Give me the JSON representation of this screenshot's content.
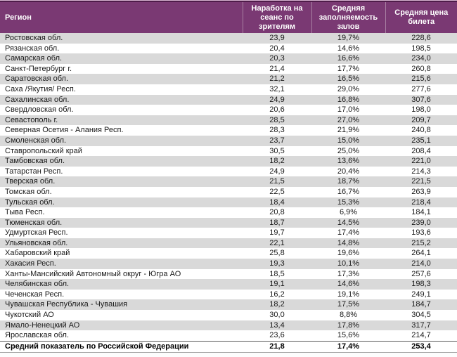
{
  "colors": {
    "header_bg": "#7a3973",
    "header_text": "#ffffff",
    "header_border_dark": "#4e1c49",
    "header_top_light": "#d8b7d2",
    "header_separator": "#a87fa2",
    "row_band_gray": "#d9d9d9",
    "row_band_white": "#ffffff",
    "body_text": "#1a1a1a",
    "total_top_border": "#595959",
    "table_bottom_border": "#a6a6a6"
  },
  "chart_data": {
    "type": "table",
    "title": "",
    "columns": [
      "Регион",
      "Наработка на сеанс по зрителям",
      "Средняя заполняемость залов",
      "Средняя цена билета"
    ],
    "rows": [
      [
        "Ростовская обл.",
        "23,9",
        "19,7%",
        "228,6"
      ],
      [
        "Рязанская обл.",
        "20,4",
        "14,6%",
        "198,5"
      ],
      [
        "Самарская обл.",
        "20,3",
        "16,6%",
        "234,0"
      ],
      [
        "Санкт-Петербург г.",
        "21,4",
        "17,7%",
        "260,8"
      ],
      [
        "Саратовская обл.",
        "21,2",
        "16,5%",
        "215,6"
      ],
      [
        "Саха /Якутия/ Респ.",
        "32,1",
        "29,0%",
        "277,6"
      ],
      [
        "Сахалинская обл.",
        "24,9",
        "16,8%",
        "307,6"
      ],
      [
        "Свердловская обл.",
        "20,6",
        "17,0%",
        "198,0"
      ],
      [
        "Севастополь г.",
        "28,5",
        "27,0%",
        "209,7"
      ],
      [
        "Северная Осетия - Алания Респ.",
        "28,3",
        "21,9%",
        "240,8"
      ],
      [
        "Смоленская обл.",
        "23,7",
        "15,0%",
        "235,1"
      ],
      [
        "Ставропольский край",
        "30,5",
        "25,0%",
        "208,4"
      ],
      [
        "Тамбовская обл.",
        "18,2",
        "13,6%",
        "221,0"
      ],
      [
        "Татарстан Респ.",
        "24,9",
        "20,4%",
        "214,3"
      ],
      [
        "Тверская обл.",
        "21,5",
        "18,7%",
        "221,5"
      ],
      [
        "Томская обл.",
        "22,5",
        "16,7%",
        "263,9"
      ],
      [
        "Тульская обл.",
        "18,4",
        "15,3%",
        "218,4"
      ],
      [
        "Тыва Респ.",
        "20,8",
        "6,9%",
        "184,1"
      ],
      [
        "Тюменская обл.",
        "18,7",
        "14,5%",
        "239,0"
      ],
      [
        "Удмуртская Респ.",
        "19,7",
        "17,4%",
        "193,6"
      ],
      [
        "Ульяновская обл.",
        "22,1",
        "14,8%",
        "215,2"
      ],
      [
        "Хабаровский край",
        "25,8",
        "19,6%",
        "264,1"
      ],
      [
        "Хакасия Респ.",
        "19,3",
        "10,1%",
        "214,0"
      ],
      [
        "Ханты-Мансийский Автономный округ - Югра АО",
        "18,5",
        "17,3%",
        "257,6"
      ],
      [
        "Челябинская обл.",
        "19,1",
        "14,6%",
        "198,3"
      ],
      [
        "Чеченская Респ.",
        "16,2",
        "19,1%",
        "249,1"
      ],
      [
        "Чувашская Республика - Чувашия",
        "18,2",
        "17,5%",
        "184,7"
      ],
      [
        "Чукотский АО",
        "30,0",
        "8,8%",
        "304,5"
      ],
      [
        "Ямало-Ненецкий АО",
        "13,4",
        "17,8%",
        "317,7"
      ],
      [
        "Ярославская обл.",
        "23,6",
        "15,6%",
        "214,7"
      ]
    ],
    "total_row": [
      "Средний показатель по Российской Федерации",
      "21,8",
      "17,4%",
      "253,4"
    ]
  }
}
